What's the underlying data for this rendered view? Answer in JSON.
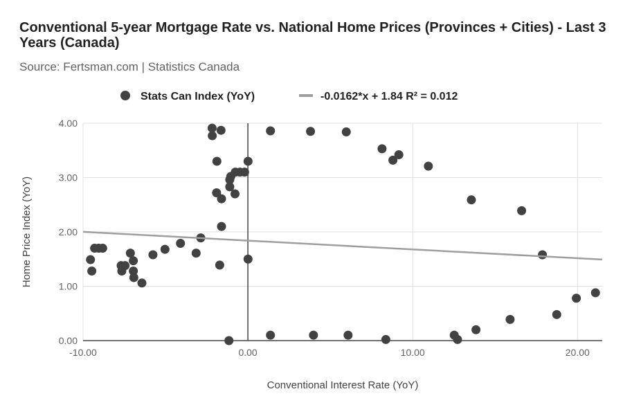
{
  "chart_data": {
    "type": "scatter",
    "title": "Conventional 5-year Mortgage Rate vs. National Home Prices (Provinces + Cities) - Last 3 Years (Canada)",
    "subtitle": "Source: Fertsman.com | Statistics Canada",
    "xlabel": "Conventional Interest Rate (YoY)",
    "ylabel": "Home Price Index (YoY)",
    "xlim": [
      -10,
      21.5
    ],
    "ylim": [
      0,
      4
    ],
    "xticks": [
      "-10.00",
      "0.00",
      "10.00",
      "20.00"
    ],
    "yticks": [
      "0.00",
      "1.00",
      "2.00",
      "3.00",
      "4.00"
    ],
    "grid": true,
    "legend_position": "top",
    "series": [
      {
        "name": "Stats Can Index (YoY)",
        "color": "#424242",
        "points": [
          [
            -2.17,
            3.91
          ],
          [
            -2.16,
            3.77
          ],
          [
            -1.63,
            3.87
          ],
          [
            -1.88,
            3.3
          ],
          [
            0.01,
            3.3
          ],
          [
            -1.04,
            3.02
          ],
          [
            -0.76,
            3.1
          ],
          [
            -0.48,
            3.1
          ],
          [
            -0.2,
            3.1
          ],
          [
            -1.1,
            2.96
          ],
          [
            -1.1,
            2.83
          ],
          [
            -0.78,
            2.7
          ],
          [
            -1.9,
            2.72
          ],
          [
            -1.6,
            2.61
          ],
          [
            -1.6,
            2.1
          ],
          [
            -2.86,
            1.89
          ],
          [
            -4.09,
            1.79
          ],
          [
            -5.03,
            1.68
          ],
          [
            -5.76,
            1.58
          ],
          [
            -3.14,
            1.61
          ],
          [
            -1.71,
            1.39
          ],
          [
            0.01,
            1.5
          ],
          [
            -9.3,
            1.7
          ],
          [
            -9.05,
            1.7
          ],
          [
            -8.81,
            1.7
          ],
          [
            -9.55,
            1.49
          ],
          [
            -9.47,
            1.28
          ],
          [
            -7.13,
            1.61
          ],
          [
            -6.95,
            1.47
          ],
          [
            -7.69,
            1.38
          ],
          [
            -7.45,
            1.38
          ],
          [
            -7.65,
            1.28
          ],
          [
            -6.95,
            1.28
          ],
          [
            -6.92,
            1.16
          ],
          [
            -6.43,
            1.06
          ],
          [
            -1.15,
            0.0
          ],
          [
            1.37,
            3.86
          ],
          [
            3.8,
            3.85
          ],
          [
            5.97,
            3.84
          ],
          [
            8.14,
            3.53
          ],
          [
            9.16,
            3.42
          ],
          [
            8.8,
            3.32
          ],
          [
            10.95,
            3.21
          ],
          [
            13.56,
            2.59
          ],
          [
            16.61,
            2.39
          ],
          [
            17.87,
            1.58
          ],
          [
            21.09,
            0.88
          ],
          [
            19.93,
            0.78
          ],
          [
            18.74,
            0.48
          ],
          [
            15.91,
            0.39
          ],
          [
            13.84,
            0.2
          ],
          [
            12.52,
            0.1
          ],
          [
            12.72,
            0.02
          ],
          [
            1.37,
            0.1
          ],
          [
            3.98,
            0.1
          ],
          [
            6.08,
            0.1
          ],
          [
            8.37,
            0.02
          ]
        ]
      }
    ],
    "trendline": {
      "label": "-0.0162*x + 1.84 R² = 0.012",
      "slope": -0.0162,
      "intercept": 1.84,
      "color": "#9e9e9e"
    }
  }
}
